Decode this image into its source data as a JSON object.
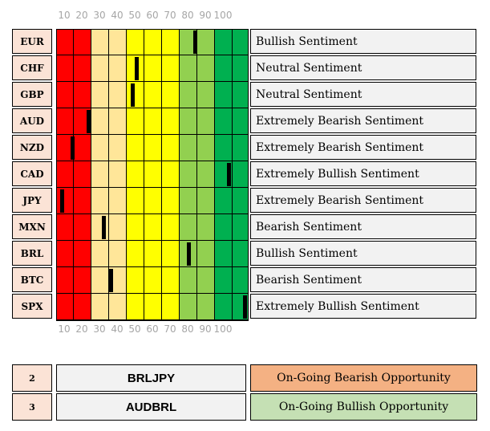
{
  "scale_labels": [
    "10",
    "20",
    "30",
    "40",
    "50",
    "60",
    "70",
    "80",
    "90",
    "100"
  ],
  "zone_colors": [
    "#ff0000",
    "#ff0000",
    "#ffe699",
    "#ffe699",
    "#ffff00",
    "#ffff00",
    "#ffff00",
    "#92d050",
    "#92d050",
    "#00b050",
    "#00b050"
  ],
  "rows": [
    {
      "code": "EUR",
      "sentiment": "Bullish Sentiment",
      "value": 0.7222
    },
    {
      "code": "CHF",
      "sentiment": "Neutral Sentiment",
      "value": 0.4167
    },
    {
      "code": "GBP",
      "sentiment": "Neutral Sentiment",
      "value": 0.3958
    },
    {
      "code": "AUD",
      "sentiment": "Extremely Bearish Sentiment",
      "value": 0.1667
    },
    {
      "code": "NZD",
      "sentiment": "Extremely Bearish Sentiment",
      "value": 0.0833
    },
    {
      "code": "CAD",
      "sentiment": "Extremely Bullish Sentiment",
      "value": 0.8958
    },
    {
      "code": "JPY",
      "sentiment": "Extremely Bearish Sentiment",
      "value": 0.0292
    },
    {
      "code": "MXN",
      "sentiment": "Bearish Sentiment",
      "value": 0.2458
    },
    {
      "code": "BRL",
      "sentiment": "Bullish Sentiment",
      "value": 0.6875
    },
    {
      "code": "BTC",
      "sentiment": "Bearish Sentiment",
      "value": 0.2833
    },
    {
      "code": "SPX",
      "sentiment": "Extremely Bullish Sentiment",
      "value": 0.9792
    }
  ],
  "opportunities": [
    {
      "number": "2",
      "pair": "BRLJPY",
      "status": "On-Going Bearish Opportunity",
      "color": "#f4b183"
    },
    {
      "number": "3",
      "pair": "AUDBRL",
      "status": "On-Going Bullish Opportunity",
      "color": "#c5e0b4"
    }
  ]
}
